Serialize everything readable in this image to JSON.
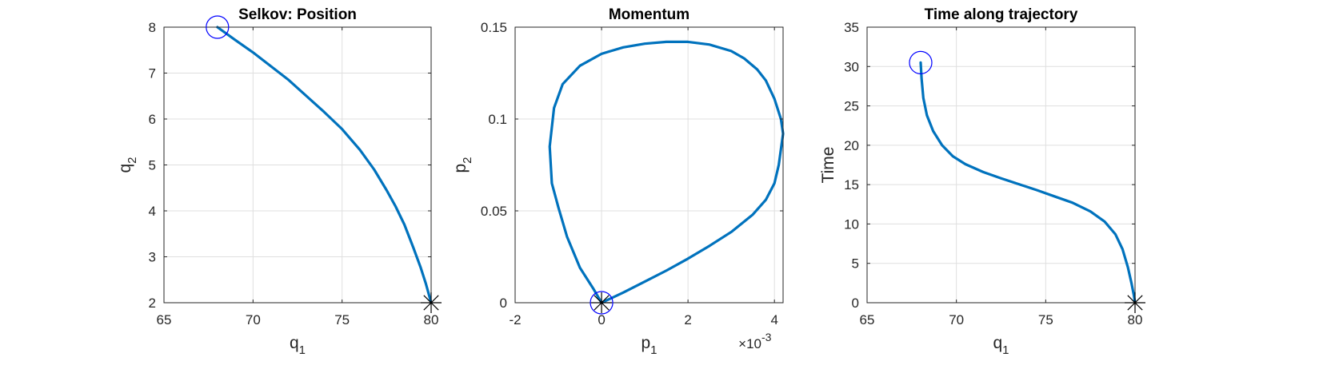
{
  "chart_data": [
    {
      "type": "line",
      "title": "Selkov: Position",
      "xlabel": "q_1",
      "ylabel": "q_2",
      "xlim": [
        65,
        80
      ],
      "ylim": [
        2,
        8
      ],
      "xticks": [
        65,
        70,
        75,
        80
      ],
      "yticks": [
        2,
        3,
        4,
        5,
        6,
        7,
        8
      ],
      "grid": true,
      "series": [
        {
          "color": "#0072BD",
          "x": [
            68.0,
            69.0,
            70.0,
            71.0,
            72.0,
            73.0,
            74.0,
            75.0,
            76.0,
            76.8,
            77.5,
            78.0,
            78.5,
            79.0,
            79.4,
            79.7,
            80.0
          ],
          "y": [
            8.0,
            7.72,
            7.45,
            7.15,
            6.85,
            6.5,
            6.15,
            5.78,
            5.33,
            4.9,
            4.45,
            4.1,
            3.7,
            3.2,
            2.78,
            2.42,
            2.0
          ]
        }
      ],
      "markers": [
        {
          "shape": "circle",
          "color": "#0000FF",
          "x": 68.0,
          "y": 8.0
        },
        {
          "shape": "asterisk",
          "color": "#000000",
          "x": 80.0,
          "y": 2.0
        }
      ]
    },
    {
      "type": "line",
      "title": "Momentum",
      "xlabel": "p_1",
      "ylabel": "p_2",
      "x_exponent_label": "×10",
      "x_exponent": "-3",
      "xlim": [
        -0.002,
        0.0042
      ],
      "ylim": [
        0,
        0.15
      ],
      "xticks": [
        -0.002,
        0,
        0.002,
        0.004
      ],
      "xticklabels": [
        "-2",
        "0",
        "2",
        "4"
      ],
      "yticks": [
        0,
        0.05,
        0.1,
        0.15
      ],
      "yticklabels": [
        "0",
        "0.05",
        "0.1",
        "0.15"
      ],
      "grid": true,
      "series": [
        {
          "color": "#0072BD",
          "x": [
            0.0,
            0.0005,
            0.001,
            0.0015,
            0.002,
            0.0025,
            0.003,
            0.0035,
            0.0038,
            0.004,
            0.0041,
            0.0042,
            0.00415,
            0.004,
            0.0038,
            0.0036,
            0.0033,
            0.003,
            0.0025,
            0.002,
            0.0015,
            0.001,
            0.0005,
            0.0,
            -0.0005,
            -0.0009,
            -0.0011,
            -0.0012,
            -0.00115,
            -0.001,
            -0.0008,
            -0.0005,
            -0.0002,
            0.0
          ],
          "y": [
            0.0,
            0.0055,
            0.0115,
            0.0175,
            0.024,
            0.031,
            0.0385,
            0.048,
            0.056,
            0.065,
            0.075,
            0.092,
            0.1,
            0.111,
            0.121,
            0.127,
            0.133,
            0.137,
            0.1405,
            0.142,
            0.142,
            0.141,
            0.139,
            0.1355,
            0.129,
            0.119,
            0.106,
            0.085,
            0.065,
            0.052,
            0.036,
            0.019,
            0.008,
            0.0
          ]
        }
      ],
      "markers": [
        {
          "shape": "circle",
          "color": "#0000FF",
          "x": 0.0,
          "y": 0.0
        },
        {
          "shape": "asterisk",
          "color": "#000000",
          "x": 0.0,
          "y": 0.0
        }
      ]
    },
    {
      "type": "line",
      "title": "Time along trajectory",
      "xlabel": "q_1",
      "ylabel": "Time",
      "xlim": [
        65,
        80
      ],
      "ylim": [
        0,
        35
      ],
      "xticks": [
        65,
        70,
        75,
        80
      ],
      "yticks": [
        0,
        5,
        10,
        15,
        20,
        25,
        30,
        35
      ],
      "grid": true,
      "series": [
        {
          "color": "#0072BD",
          "x": [
            68.0,
            68.05,
            68.15,
            68.35,
            68.7,
            69.2,
            69.8,
            70.5,
            71.5,
            72.5,
            73.5,
            74.5,
            75.5,
            76.5,
            77.5,
            78.3,
            78.9,
            79.3,
            79.6,
            79.8,
            79.93,
            80.0
          ],
          "y": [
            30.5,
            28.5,
            26.0,
            23.8,
            21.8,
            20.0,
            18.6,
            17.6,
            16.6,
            15.8,
            15.05,
            14.3,
            13.5,
            12.7,
            11.6,
            10.3,
            8.7,
            6.8,
            4.5,
            2.5,
            1.0,
            0.0
          ]
        }
      ],
      "markers": [
        {
          "shape": "circle",
          "color": "#0000FF",
          "x": 68.0,
          "y": 30.5
        },
        {
          "shape": "asterisk",
          "color": "#000000",
          "x": 80.0,
          "y": 0.0
        }
      ]
    }
  ]
}
